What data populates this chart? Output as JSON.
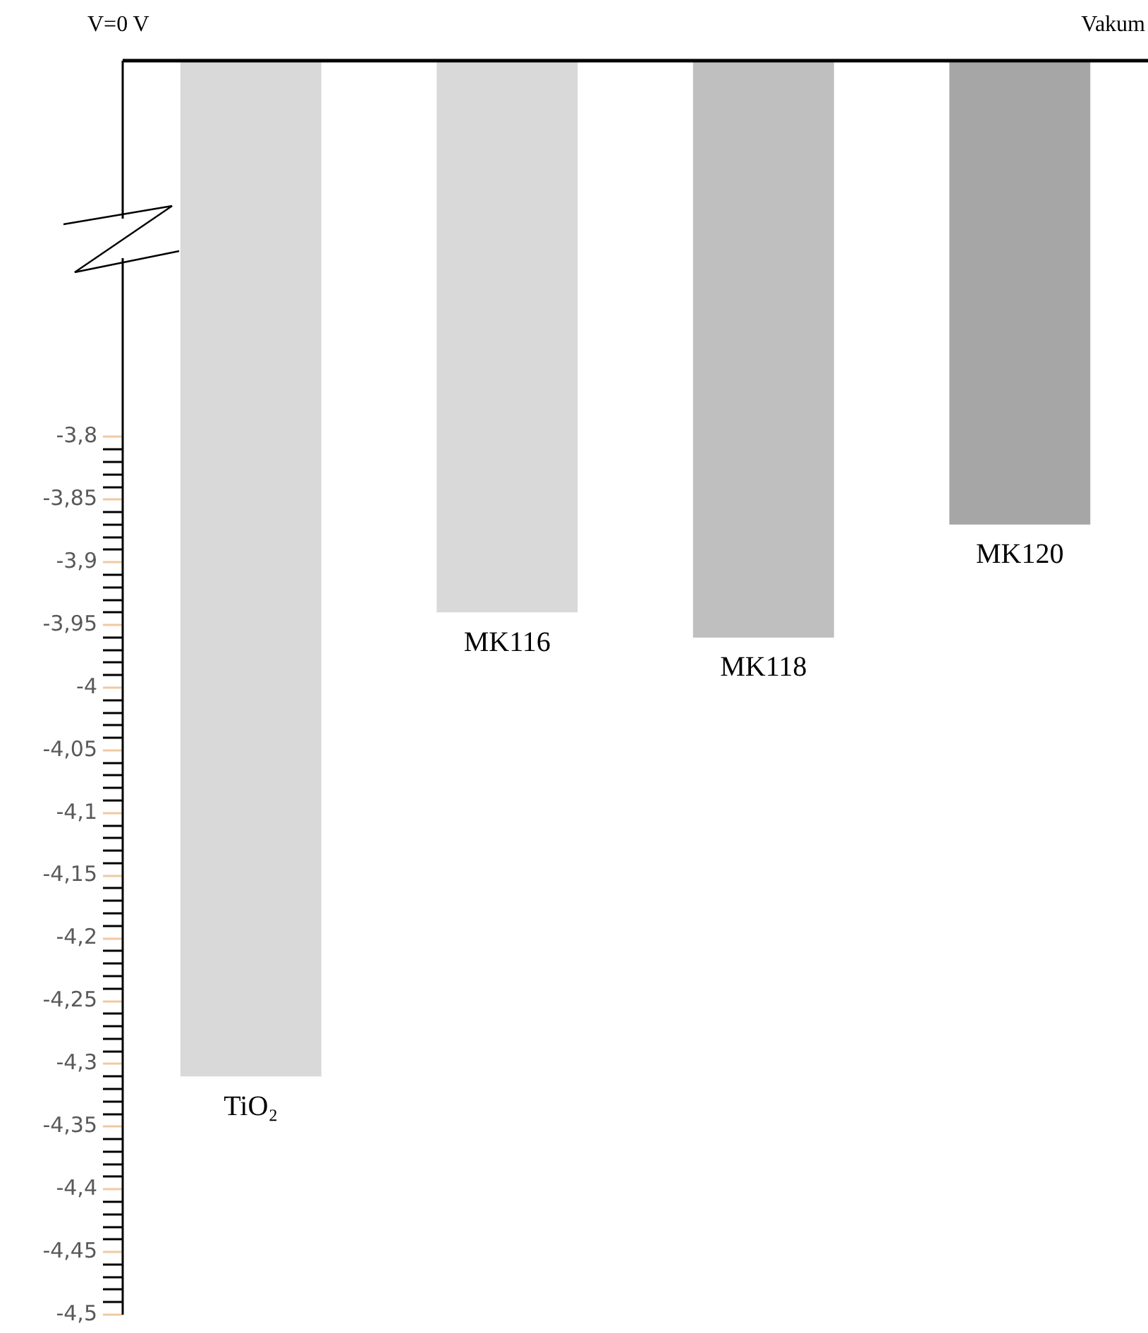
{
  "chart_data": {
    "type": "bar",
    "categories": [
      "TiO₂",
      "MK116",
      "MK118",
      "MK120"
    ],
    "values": [
      -4.31,
      -3.94,
      -3.96,
      -3.87
    ],
    "colors": [
      "#d9d9d9",
      "#d9d9d9",
      "#bfbfbf",
      "#a6a6a6"
    ],
    "ylim": [
      -4.5,
      -3.5
    ],
    "yticks": [
      {
        "value": -3.8,
        "label": "-3,8"
      },
      {
        "value": -3.81,
        "label": null
      },
      {
        "value": -3.82,
        "label": null
      },
      {
        "value": -3.83,
        "label": null
      },
      {
        "value": -3.84,
        "label": null
      },
      {
        "value": -3.85,
        "label": "-3,85"
      },
      {
        "value": -3.86,
        "label": null
      },
      {
        "value": -3.87,
        "label": null
      },
      {
        "value": -3.88,
        "label": null
      },
      {
        "value": -3.89,
        "label": null
      },
      {
        "value": -3.9,
        "label": "-3,9"
      },
      {
        "value": -3.91,
        "label": null
      },
      {
        "value": -3.92,
        "label": null
      },
      {
        "value": -3.93,
        "label": null
      },
      {
        "value": -3.94,
        "label": null
      },
      {
        "value": -3.95,
        "label": "-3,95"
      },
      {
        "value": -3.96,
        "label": null
      },
      {
        "value": -3.97,
        "label": null
      },
      {
        "value": -3.98,
        "label": null
      },
      {
        "value": -3.99,
        "label": null
      },
      {
        "value": -4,
        "label": "-4"
      },
      {
        "value": -4.01,
        "label": null
      },
      {
        "value": -4.02,
        "label": null
      },
      {
        "value": -4.03,
        "label": null
      },
      {
        "value": -4.04,
        "label": null
      },
      {
        "value": -4.05,
        "label": "-4,05"
      },
      {
        "value": -4.06,
        "label": null
      },
      {
        "value": -4.07,
        "label": null
      },
      {
        "value": -4.08,
        "label": null
      },
      {
        "value": -4.09,
        "label": null
      },
      {
        "value": -4.1,
        "label": "-4,1"
      },
      {
        "value": -4.11,
        "label": null
      },
      {
        "value": -4.12,
        "label": null
      },
      {
        "value": -4.13,
        "label": null
      },
      {
        "value": -4.14,
        "label": null
      },
      {
        "value": -4.15,
        "label": "-4,15"
      },
      {
        "value": -4.16,
        "label": null
      },
      {
        "value": -4.17,
        "label": null
      },
      {
        "value": -4.18,
        "label": null
      },
      {
        "value": -4.19,
        "label": null
      },
      {
        "value": -4.2,
        "label": "-4,2"
      },
      {
        "value": -4.21,
        "label": null
      },
      {
        "value": -4.22,
        "label": null
      },
      {
        "value": -4.23,
        "label": null
      },
      {
        "value": -4.24,
        "label": null
      },
      {
        "value": -4.25,
        "label": "-4,25"
      },
      {
        "value": -4.26,
        "label": null
      },
      {
        "value": -4.27,
        "label": null
      },
      {
        "value": -4.28,
        "label": null
      },
      {
        "value": -4.29,
        "label": null
      },
      {
        "value": -4.3,
        "label": "-4,3"
      },
      {
        "value": -4.31,
        "label": null
      },
      {
        "value": -4.32,
        "label": null
      },
      {
        "value": -4.33,
        "label": null
      },
      {
        "value": -4.34,
        "label": null
      },
      {
        "value": -4.35,
        "label": "-4,35"
      },
      {
        "value": -4.36,
        "label": null
      },
      {
        "value": -4.37,
        "label": null
      },
      {
        "value": -4.38,
        "label": null
      },
      {
        "value": -4.39,
        "label": null
      },
      {
        "value": -4.4,
        "label": "-4,4"
      },
      {
        "value": -4.41,
        "label": null
      },
      {
        "value": -4.42,
        "label": null
      },
      {
        "value": -4.43,
        "label": null
      },
      {
        "value": -4.44,
        "label": null
      },
      {
        "value": -4.45,
        "label": "-4,45"
      },
      {
        "value": -4.46,
        "label": null
      },
      {
        "value": -4.47,
        "label": null
      },
      {
        "value": -4.48,
        "label": null
      },
      {
        "value": -4.49,
        "label": null
      },
      {
        "value": -4.5,
        "label": "-4,5"
      }
    ],
    "tick_labels": "y",
    "annotations": [
      "V=0 V",
      "Vakum"
    ]
  }
}
